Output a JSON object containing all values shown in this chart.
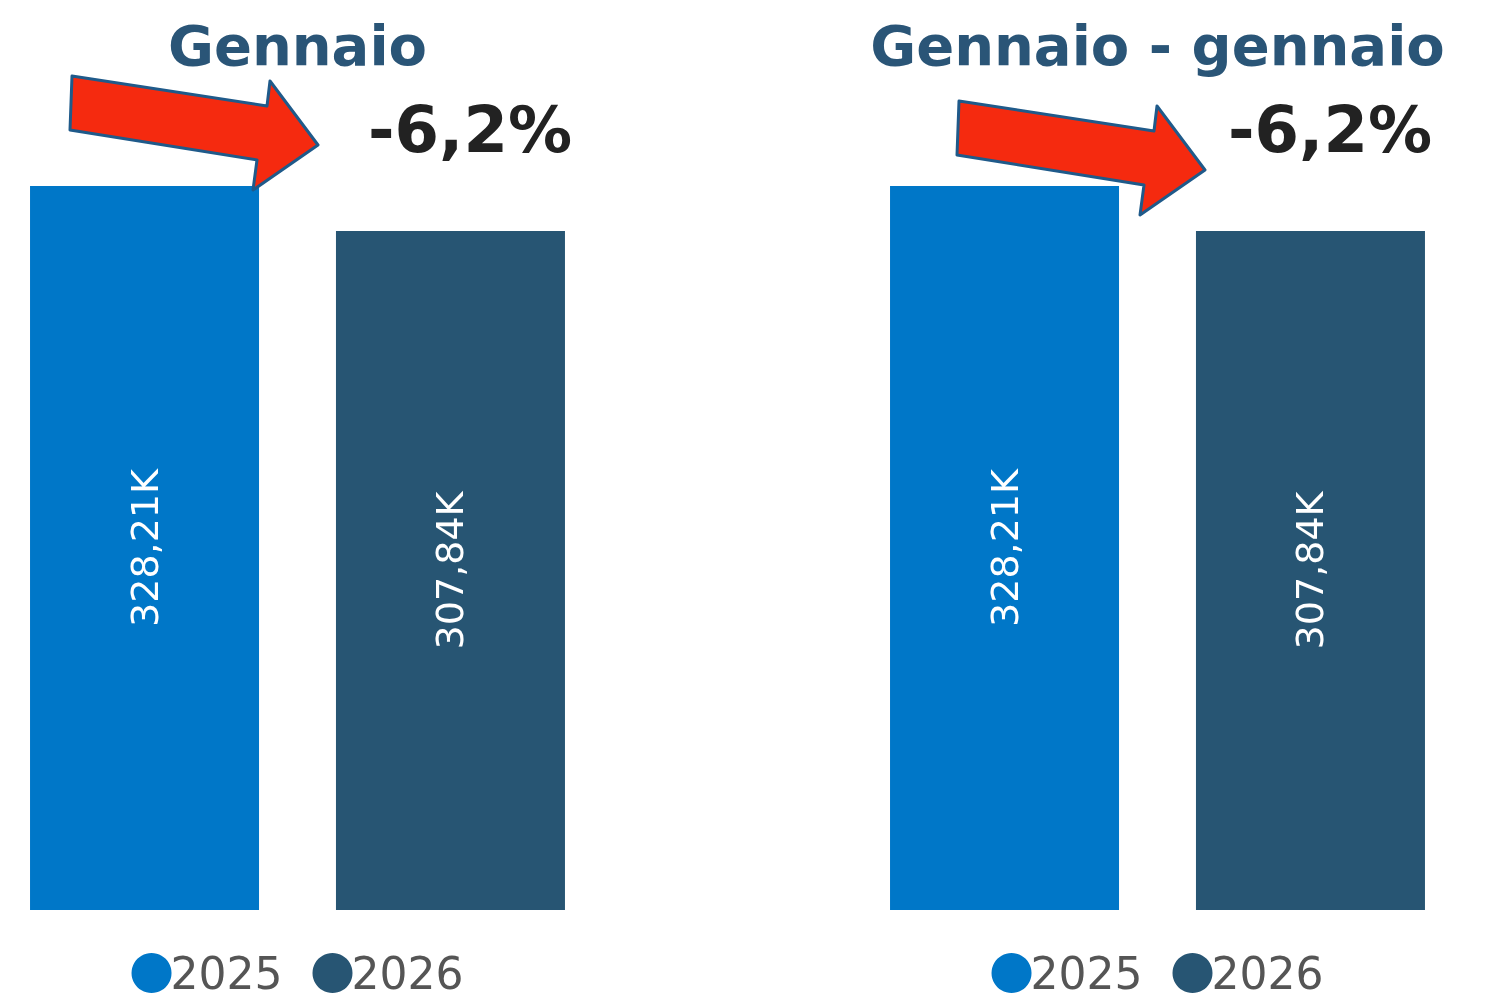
{
  "chart_data": [
    {
      "type": "bar",
      "title": "Gennaio",
      "categories": [
        null
      ],
      "series": [
        {
          "name": "2025",
          "color": "#0077c8",
          "values": [
            328210
          ],
          "value_labels": [
            "328,21K"
          ]
        },
        {
          "name": "2026",
          "color": "#275573",
          "values": [
            307840
          ],
          "value_labels": [
            "307,84K"
          ]
        }
      ],
      "legend": "bottom",
      "annotations": [
        "-6,2%"
      ]
    },
    {
      "type": "bar",
      "title": "Gennaio - gennaio",
      "categories": [
        null
      ],
      "series": [
        {
          "name": "2025",
          "color": "#0077c8",
          "values": [
            328210
          ],
          "value_labels": [
            "328,21K"
          ]
        },
        {
          "name": "2026",
          "color": "#275573",
          "values": [
            307840
          ],
          "value_labels": [
            "307,84K"
          ]
        }
      ],
      "legend": "bottom",
      "annotations": [
        "-6,2%"
      ]
    }
  ]
}
